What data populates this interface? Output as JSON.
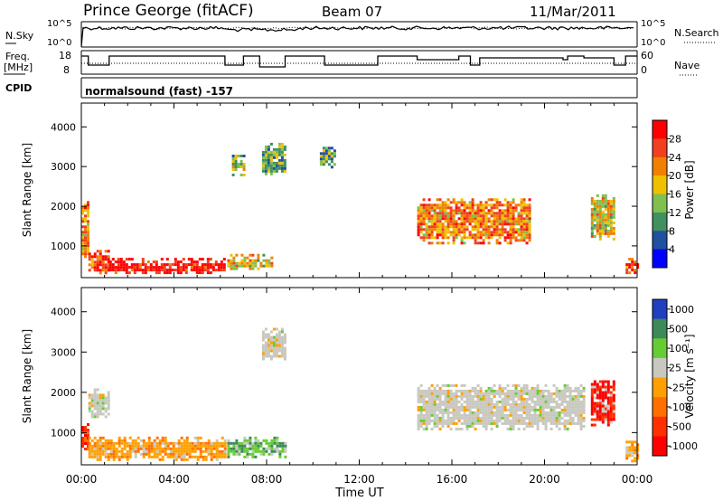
{
  "header": {
    "title": "Prince George (fitACF)",
    "beam": "Beam 07",
    "date": "11/Mar/2011"
  },
  "noise_panel": {
    "left_label": "N.Sky",
    "right_label": "N.Search",
    "left_ticks": [
      "10^5",
      "10^0"
    ],
    "right_ticks": [
      "10^5",
      "10^0"
    ]
  },
  "freq_panel": {
    "left_label_1": "Freq.",
    "left_label_2": "[MHz]",
    "right_label": "Nave",
    "left_ticks": [
      "18",
      "8"
    ],
    "right_ticks": [
      "60",
      "0"
    ]
  },
  "cpid": {
    "label": "CPID",
    "text": "normalsound (fast) -157"
  },
  "x_axis": {
    "label": "Time UT",
    "ticks": [
      "00:00",
      "04:00",
      "08:00",
      "12:00",
      "16:00",
      "20:00",
      "00:00"
    ]
  },
  "power_colorbar": {
    "label": "Power [dB]",
    "ticks": [
      "28",
      "24",
      "20",
      "16",
      "12",
      "8",
      "4"
    ],
    "colors": [
      "#ff0000",
      "#f04020",
      "#f08000",
      "#f0c000",
      "#80c050",
      "#409060",
      "#2050a0",
      "#0000ff"
    ]
  },
  "velocity_colorbar": {
    "label": "Velocity [m s⁻¹]",
    "ticks": [
      "1000",
      "500",
      "100",
      "25",
      "-25",
      "-100",
      "-500",
      "-1000"
    ],
    "colors": [
      "#2040c0",
      "#3c8a5a",
      "#66cc33",
      "#c8c8c0",
      "#ffa000",
      "#ff7000",
      "#ff3000",
      "#ff0000"
    ]
  },
  "chart_data": [
    {
      "type": "heatmap",
      "title": "Power",
      "xlabel": "Time UT",
      "ylabel": "Slant Range [km]",
      "xlim": [
        "00:00",
        "24:00"
      ],
      "ylim": [
        200,
        4600
      ],
      "yticks": [
        1000,
        2000,
        3000,
        4000
      ],
      "color_label": "Power [dB]",
      "regions": [
        {
          "t0": 0.0,
          "t1": 0.3,
          "r0": 700,
          "r1": 2200,
          "level": 20
        },
        {
          "t0": 0.3,
          "t1": 1.2,
          "r0": 300,
          "r1": 900,
          "level": 24
        },
        {
          "t0": 1.2,
          "t1": 6.2,
          "r0": 300,
          "r1": 700,
          "level": 28
        },
        {
          "t0": 6.3,
          "t1": 8.2,
          "r0": 400,
          "r1": 800,
          "level": 16
        },
        {
          "t0": 6.5,
          "t1": 7.0,
          "r0": 2800,
          "r1": 3300,
          "level": 12
        },
        {
          "t0": 7.8,
          "t1": 8.8,
          "r0": 2800,
          "r1": 3600,
          "level": 10
        },
        {
          "t0": 10.3,
          "t1": 10.9,
          "r0": 3000,
          "r1": 3500,
          "level": 10
        },
        {
          "t0": 14.5,
          "t1": 19.4,
          "r0": 1100,
          "r1": 2200,
          "level": 20
        },
        {
          "t0": 22.0,
          "t1": 23.0,
          "r0": 1200,
          "r1": 2300,
          "level": 16
        },
        {
          "t0": 23.5,
          "t1": 24.0,
          "r0": 300,
          "r1": 700,
          "level": 24
        }
      ]
    },
    {
      "type": "heatmap",
      "title": "Velocity",
      "xlabel": "Time UT",
      "ylabel": "Slant Range [km]",
      "xlim": [
        "00:00",
        "24:00"
      ],
      "ylim": [
        200,
        4600
      ],
      "yticks": [
        1000,
        2000,
        3000,
        4000
      ],
      "color_label": "Velocity [m s⁻¹]",
      "regions": [
        {
          "t0": 0.0,
          "t1": 0.3,
          "r0": 600,
          "r1": 1300,
          "level": -500
        },
        {
          "t0": 0.3,
          "t1": 1.2,
          "r0": 1400,
          "r1": 2100,
          "level": 0
        },
        {
          "t0": 0.3,
          "t1": 6.2,
          "r0": 300,
          "r1": 900,
          "level": -100
        },
        {
          "t0": 6.3,
          "t1": 8.8,
          "r0": 400,
          "r1": 900,
          "level": 100
        },
        {
          "t0": 7.8,
          "t1": 8.8,
          "r0": 2800,
          "r1": 3600,
          "level": 0
        },
        {
          "t0": 14.5,
          "t1": 21.7,
          "r0": 1100,
          "r1": 2200,
          "level": 0
        },
        {
          "t0": 22.0,
          "t1": 23.0,
          "r0": 1200,
          "r1": 2300,
          "level": -1000
        },
        {
          "t0": 23.5,
          "t1": 24.0,
          "r0": 300,
          "r1": 800,
          "level": -100
        }
      ]
    }
  ]
}
